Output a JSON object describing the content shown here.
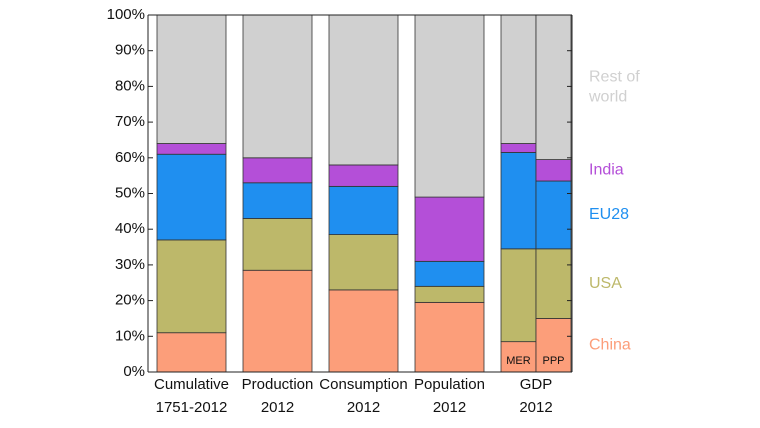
{
  "chart_data": {
    "type": "stacked_bar",
    "categories": [
      [
        "Cumulative",
        "1751-2012"
      ],
      [
        "Production",
        "2012"
      ],
      [
        "Consumption",
        "2012"
      ],
      [
        "Population",
        "2012"
      ],
      [
        "GDP",
        "2012"
      ],
      null
    ],
    "bar_labels": [
      null,
      null,
      null,
      null,
      "MER",
      "PPP"
    ],
    "series": [
      {
        "name": "China",
        "color": "#fc9e7a",
        "values": [
          11,
          28.5,
          23,
          19.5,
          8.5,
          15
        ]
      },
      {
        "name": "USA",
        "color": "#bdb86a",
        "values": [
          26,
          14.5,
          15.5,
          4.5,
          26,
          19.5
        ]
      },
      {
        "name": "EU28",
        "color": "#1f8ff0",
        "values": [
          24,
          10,
          13.5,
          7,
          27,
          19
        ]
      },
      {
        "name": "India",
        "color": "#b44fd8",
        "values": [
          3,
          7,
          6,
          18,
          2.5,
          6
        ]
      },
      {
        "name": [
          "Rest of",
          "world"
        ],
        "color": "#d0d0d0",
        "values": [
          36,
          40,
          42,
          51,
          36,
          40.5
        ]
      }
    ],
    "ylim": [
      0,
      100
    ],
    "yticks": [
      {
        "value": 0,
        "label": "0%"
      },
      {
        "value": 10,
        "label": "10%"
      },
      {
        "value": 20,
        "label": "20%"
      },
      {
        "value": 30,
        "label": "30%"
      },
      {
        "value": 40,
        "label": "40%"
      },
      {
        "value": 50,
        "label": "50%"
      },
      {
        "value": 60,
        "label": "60%"
      },
      {
        "value": 70,
        "label": "70%"
      },
      {
        "value": 80,
        "label": "80%"
      },
      {
        "value": 90,
        "label": "90%"
      },
      {
        "value": 100,
        "label": "100%"
      }
    ],
    "grid": false
  }
}
